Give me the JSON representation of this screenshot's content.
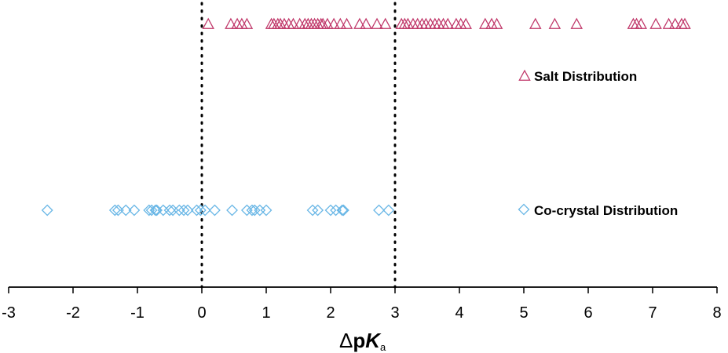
{
  "chart_data": {
    "type": "scatter",
    "xlabel": {
      "delta": "Δ",
      "p": "p",
      "K": "K",
      "sub": "a"
    },
    "xlim": [
      -3,
      8
    ],
    "xticks": [
      "-3",
      "-2",
      "-1",
      "0",
      "1",
      "2",
      "3",
      "4",
      "5",
      "6",
      "7",
      "8"
    ],
    "reference_lines": [
      0,
      3
    ],
    "grid": false,
    "series": [
      {
        "name": "Salt Distribution",
        "marker": "triangle",
        "color": "#c0386a",
        "x": [
          0.1,
          0.45,
          0.55,
          0.62,
          0.7,
          1.08,
          1.12,
          1.18,
          1.22,
          1.28,
          1.35,
          1.42,
          1.52,
          1.6,
          1.65,
          1.7,
          1.75,
          1.8,
          1.85,
          1.88,
          1.95,
          2.05,
          2.15,
          2.25,
          2.45,
          2.55,
          2.72,
          2.85,
          3.1,
          3.15,
          3.2,
          3.28,
          3.35,
          3.42,
          3.48,
          3.55,
          3.62,
          3.68,
          3.75,
          3.82,
          3.95,
          4.02,
          4.1,
          4.4,
          4.5,
          4.58,
          5.18,
          5.48,
          5.82,
          6.7,
          6.75,
          6.82,
          7.05,
          7.25,
          7.35,
          7.45,
          7.5
        ]
      },
      {
        "name": "Co-crystal Distribution",
        "marker": "diamond",
        "color": "#6ab7e6",
        "x": [
          -2.4,
          -1.35,
          -1.3,
          -1.18,
          -1.05,
          -0.82,
          -0.78,
          -0.72,
          -0.7,
          -0.6,
          -0.5,
          -0.45,
          -0.35,
          -0.28,
          -0.22,
          -0.08,
          -0.02,
          0.05,
          0.2,
          0.47,
          0.7,
          0.78,
          0.82,
          0.9,
          1.0,
          1.72,
          1.8,
          2.0,
          2.08,
          2.18,
          2.2,
          2.75,
          2.9
        ]
      }
    ]
  }
}
